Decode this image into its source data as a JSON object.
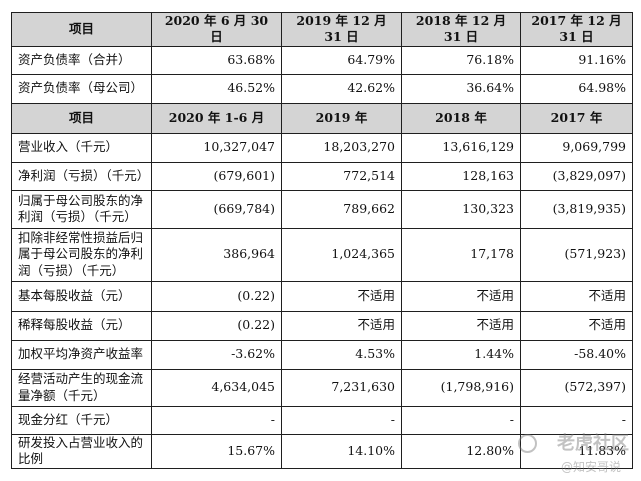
{
  "table1": {
    "headers": [
      "项目",
      "2020 年 6 月 30 日",
      "2019 年 12 月 31 日",
      "2018 年 12 月 31 日",
      "2017 年 12 月 31 日"
    ],
    "rows": [
      {
        "label": "资产负债率（合并）",
        "cells": [
          "63.68%",
          "64.79%",
          "76.18%",
          "91.16%"
        ]
      },
      {
        "label": "资产负债率（母公司）",
        "cells": [
          "46.52%",
          "42.62%",
          "36.64%",
          "64.98%"
        ]
      }
    ]
  },
  "table2": {
    "headers": [
      "项目",
      "2020 年 1-6 月",
      "2019 年",
      "2018 年",
      "2017 年"
    ],
    "rows": [
      {
        "label": "营业收入（千元）",
        "cells": [
          "10,327,047",
          "18,203,270",
          "13,616,129",
          "9,069,799"
        ]
      },
      {
        "label": "净利润（亏损）（千元）",
        "cells": [
          "(679,601)",
          "772,514",
          "128,163",
          "(3,829,097)"
        ]
      },
      {
        "label": "归属于母公司股东的净利润（亏损）（千元）",
        "cells": [
          "(669,784)",
          "789,662",
          "130,323",
          "(3,819,935)"
        ]
      },
      {
        "label": "扣除非经常性损益后归属于母公司股东的净利润（亏损）（千元）",
        "cells": [
          "386,964",
          "1,024,365",
          "17,178",
          "(571,923)"
        ]
      },
      {
        "label": "基本每股收益（元）",
        "cells": [
          "(0.22)",
          "不适用",
          "不适用",
          "不适用"
        ]
      },
      {
        "label": "稀释每股收益（元）",
        "cells": [
          "(0.22)",
          "不适用",
          "不适用",
          "不适用"
        ]
      },
      {
        "label": "加权平均净资产收益率",
        "cells": [
          "-3.62%",
          "4.53%",
          "1.44%",
          "-58.40%"
        ]
      },
      {
        "label": "经营活动产生的现金流量净额（千元）",
        "cells": [
          "4,634,045",
          "7,231,630",
          "(1,798,916)",
          "(572,397)"
        ]
      },
      {
        "label": "现金分红（千元）",
        "cells": [
          "-",
          "-",
          "-",
          "-"
        ]
      },
      {
        "label": "研发投入占营业收入的比例",
        "cells": [
          "15.67%",
          "14.10%",
          "12.80%",
          "11.83%"
        ]
      }
    ]
  },
  "watermark": {
    "line1": "老虎社区",
    "line2": "@知安哥说"
  }
}
